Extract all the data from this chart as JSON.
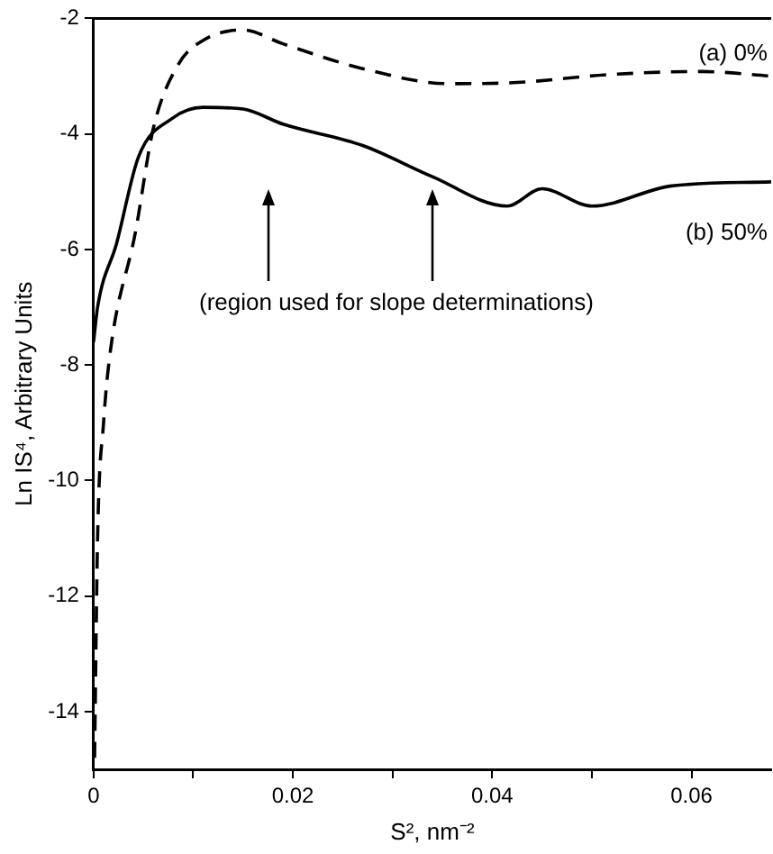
{
  "chart_data": {
    "type": "line",
    "xlabel": "S², nm⁻²",
    "ylabel": "Ln IS⁴, Arbitrary Units",
    "xlim": [
      0,
      0.068
    ],
    "xticks": [
      0,
      {
        "value": 0.01,
        "label": null
      },
      0.02,
      {
        "value": 0.03,
        "label": null
      },
      0.04,
      {
        "value": 0.05,
        "label": null
      },
      0.06
    ],
    "ylim": [
      -15,
      -2
    ],
    "yticks": [
      -2,
      -4,
      -6,
      -8,
      -10,
      -12,
      -14
    ],
    "grid": false,
    "legend": false,
    "marker": "none",
    "annotations": [
      "(region used for slope determinations)"
    ],
    "series": [
      {
        "name": "(a) 0%",
        "color": "#000000",
        "line_style": "dashed",
        "x": [
          0.0001,
          0.0004,
          0.001,
          0.0017,
          0.0042,
          0.006,
          0.0085,
          0.011,
          0.015,
          0.019,
          0.027,
          0.0357,
          0.0413,
          0.052,
          0.061,
          0.068
        ],
        "values": [
          -14.8,
          -11,
          -9,
          -7.74,
          -5.7,
          -3.9,
          -2.8,
          -2.38,
          -2.2,
          -2.44,
          -2.87,
          -3.13,
          -3.12,
          -2.97,
          -2.92,
          -3.0
        ]
      },
      {
        "name": "(b) 50%",
        "color": "#000000",
        "line_style": "solid",
        "x": [
          0,
          0.0004,
          0.0023,
          0.0045,
          0.0079,
          0.011,
          0.015,
          0.019,
          0.027,
          0.034,
          0.0415,
          0.045,
          0.05,
          0.058,
          0.068
        ],
        "values": [
          -7.6,
          -7.0,
          -5.9,
          -4.4,
          -3.73,
          -3.54,
          -3.57,
          -3.83,
          -4.2,
          -4.74,
          -5.25,
          -4.95,
          -5.25,
          -4.9,
          -4.83
        ]
      }
    ]
  }
}
